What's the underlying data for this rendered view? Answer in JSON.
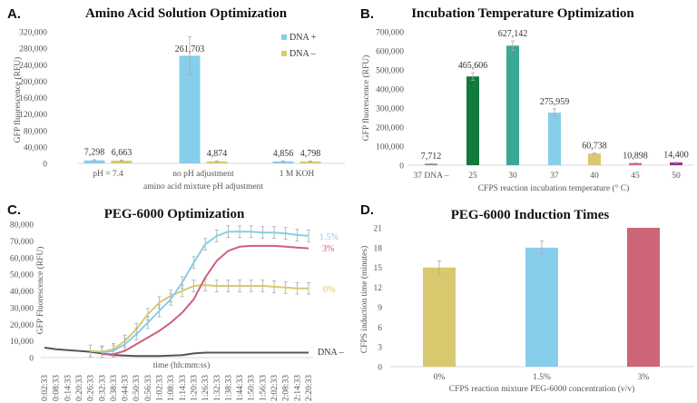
{
  "chart_data": [
    {
      "panel": "A.",
      "type": "bar",
      "title": "Amino Acid Solution Optimization",
      "xlabel": "amino acid mixture pH adjustment",
      "ylabel": "GFP fluorescence (RFU)",
      "ylim": [
        0,
        320000
      ],
      "yticks": [
        "0",
        "40,000",
        "80,000",
        "120,000",
        "160,000",
        "200,000",
        "240,000",
        "280,000",
        "320,000"
      ],
      "grid": false,
      "legend_position": "top-right",
      "categories": [
        "pH = 7.4",
        "no pH adjustment",
        "1 M KOH"
      ],
      "series": [
        {
          "name": "DNA +",
          "color": "#87ceeb",
          "values": [
            7298,
            261703,
            4856
          ],
          "labels": [
            "7,298",
            "261,703",
            "4,856"
          ],
          "errors": [
            1500,
            46000,
            1200
          ]
        },
        {
          "name": "DNA –",
          "color": "#d9c96e",
          "values": [
            6663,
            4874,
            4798
          ],
          "labels": [
            "6,663",
            "4,874",
            "4,798"
          ],
          "errors": [
            1500,
            1200,
            1200
          ]
        }
      ]
    },
    {
      "panel": "B.",
      "type": "bar",
      "title": "Incubation Temperature Optimization",
      "xlabel": "CFPS reaction incubation temperature (° C)",
      "ylabel": "GFP fluorescence (RFU)",
      "ylim": [
        0,
        700000
      ],
      "yticks": [
        "0",
        "100,000",
        "200,000",
        "300,000",
        "400,000",
        "500,000",
        "600,000",
        "700,000"
      ],
      "grid": false,
      "categories": [
        "37 DNA –",
        "25",
        "30",
        "37",
        "40",
        "45",
        "50"
      ],
      "values": [
        7712,
        465606,
        627142,
        275959,
        60738,
        10898,
        14400
      ],
      "labels": [
        "7,712",
        "465,606",
        "627,142",
        "275,959",
        "60,738",
        "10,898",
        "14,400"
      ],
      "errors": [
        1000,
        20000,
        25000,
        20000,
        3000,
        1500,
        1500
      ],
      "colors": [
        "#8a8a8a",
        "#117a3c",
        "#3aa893",
        "#87ceeb",
        "#d9c96e",
        "#e0607e",
        "#a0308a"
      ]
    },
    {
      "panel": "C.",
      "type": "line",
      "title": "PEG-6000 Optimization",
      "xlabel": "time (hh:mm:ss)",
      "ylabel": "GFP Fluorescence (RFU)",
      "ylim": [
        0,
        80000
      ],
      "yticks": [
        "0",
        "10,000",
        "20,000",
        "30,000",
        "40,000",
        "50,000",
        "60,000",
        "70,000",
        "80,000"
      ],
      "grid": false,
      "x": [
        "0:02:33",
        "0:08:33",
        "0:14:33",
        "0:20:33",
        "0:26:33",
        "0:32:33",
        "0:38:33",
        "0:44:33",
        "0:50:33",
        "0:56:33",
        "1:02:33",
        "1:08:33",
        "1:14:33",
        "1:20:33",
        "1:26:33",
        "1:32:33",
        "1:38:33",
        "1:44:33",
        "1:50:33",
        "1:56:33",
        "2:02:33",
        "2:08:33",
        "2:14:33",
        "2:20:33"
      ],
      "series": [
        {
          "name": "DNA –",
          "color": "#555555",
          "error": 0,
          "values": [
            6000,
            5000,
            4500,
            4000,
            3500,
            2500,
            1500,
            1200,
            1000,
            1000,
            1000,
            1200,
            1500,
            2500,
            3000,
            3000,
            3000,
            3000,
            3000,
            3000,
            3000,
            3000,
            3000,
            3000
          ]
        },
        {
          "name": "0%",
          "color": "#d9c96e",
          "error": 3500,
          "values": [
            null,
            null,
            null,
            null,
            4000,
            3500,
            5000,
            10000,
            17000,
            26000,
            33000,
            37000,
            40000,
            43000,
            43500,
            43000,
            43000,
            43000,
            43000,
            43000,
            42500,
            42000,
            41500,
            41500
          ]
        },
        {
          "name": "1.5%",
          "color": "#87ceeb",
          "error": 3500,
          "values": [
            null,
            null,
            null,
            null,
            null,
            3000,
            4000,
            8000,
            14000,
            21000,
            28000,
            35000,
            45000,
            57000,
            68000,
            73000,
            75500,
            75500,
            75500,
            75000,
            75000,
            74500,
            73500,
            73000
          ]
        },
        {
          "name": "3%",
          "color": "#d0607a",
          "error": 0,
          "values": [
            null,
            null,
            null,
            null,
            null,
            2000,
            2000,
            4000,
            8000,
            12000,
            16000,
            21000,
            27000,
            35000,
            48000,
            58000,
            64000,
            66500,
            67000,
            67000,
            67000,
            66500,
            66000,
            65500
          ]
        }
      ]
    },
    {
      "panel": "D.",
      "type": "bar",
      "title": "PEG-6000 Induction Times",
      "xlabel": "CFPS reaction mixture PEG-6000 concentration (v/v)",
      "ylabel": "CFPS induction time (minutes)",
      "ylim": [
        0,
        21
      ],
      "yticks": [
        "0",
        "3",
        "6",
        "9",
        "12",
        "15",
        "18",
        "21"
      ],
      "grid": false,
      "categories": [
        "0%",
        "1.5%",
        "3%"
      ],
      "values": [
        15,
        18,
        21
      ],
      "errors": [
        1,
        1,
        0
      ],
      "colors": [
        "#d9c96e",
        "#87ceeb",
        "#cc6677"
      ]
    }
  ]
}
